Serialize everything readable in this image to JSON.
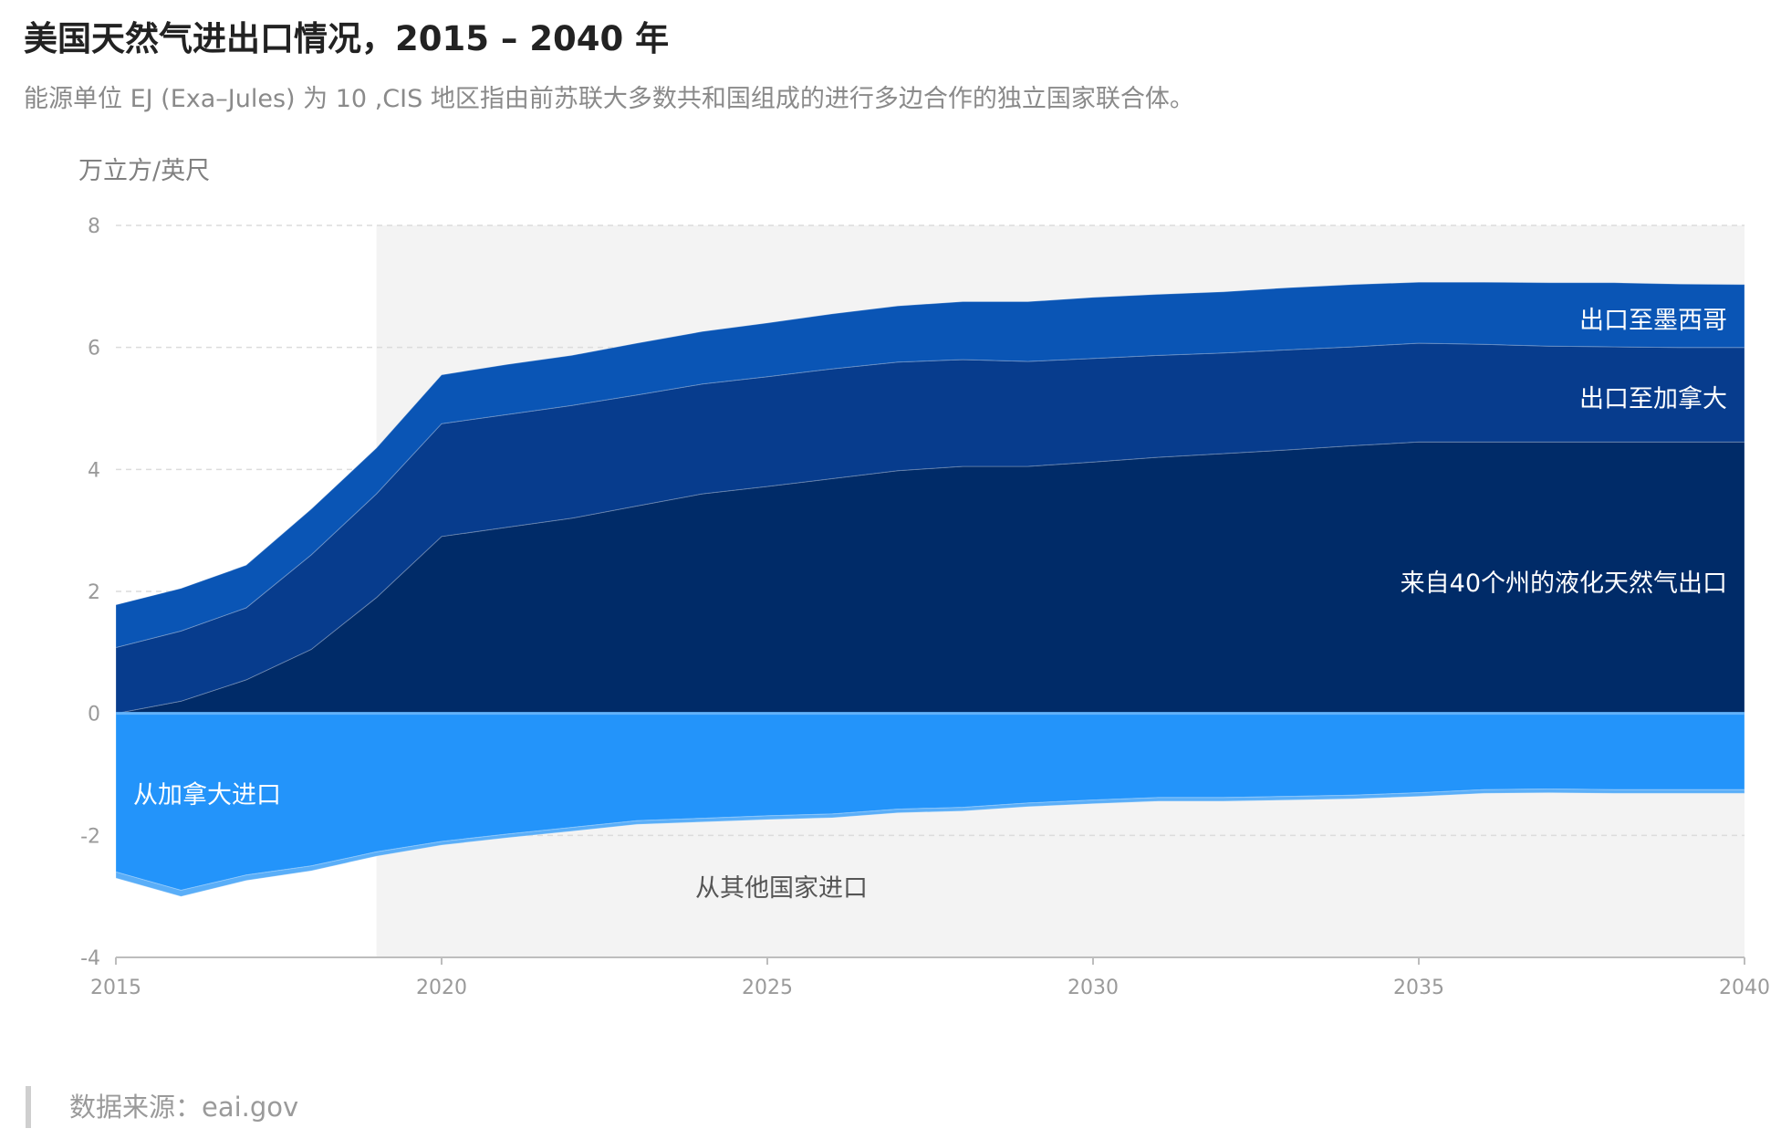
{
  "title": "美国天然气进出口情况，2015 – 2040 年",
  "subtitle": "能源单位 EJ (Exa–Jules) 为 10 ,CIS 地区指由前苏联大多数共和国组成的进行多边合作的独立国家联合体。",
  "source": "数据来源：eai.gov",
  "chart_data": {
    "type": "area",
    "ylabel": "万立方/英尺",
    "xlim": [
      2015,
      2040
    ],
    "ylim": [
      -4,
      8
    ],
    "x_ticks": [
      2015,
      2020,
      2025,
      2030,
      2035,
      2040
    ],
    "y_ticks": [
      8,
      6,
      4,
      2,
      0,
      -2,
      -4
    ],
    "grid": true,
    "shaded_region": [
      2019,
      2040
    ],
    "x": [
      2015,
      2016,
      2017,
      2018,
      2019,
      2020,
      2021,
      2022,
      2023,
      2024,
      2025,
      2026,
      2027,
      2028,
      2029,
      2030,
      2031,
      2032,
      2033,
      2034,
      2035,
      2036,
      2037,
      2038,
      2039,
      2040
    ],
    "series": [
      {
        "name": "来自40个州的液化天然气出口",
        "color": "#002b68",
        "values": [
          0.0,
          0.2,
          0.55,
          1.05,
          1.9,
          2.9,
          3.05,
          3.2,
          3.4,
          3.6,
          3.72,
          3.85,
          3.98,
          4.05,
          4.05,
          4.12,
          4.2,
          4.26,
          4.32,
          4.39,
          4.45,
          4.45,
          4.45,
          4.45,
          4.45,
          4.45
        ]
      },
      {
        "name": "出口至加拿大",
        "color": "#073c8d",
        "values": [
          1.08,
          1.15,
          1.18,
          1.55,
          1.7,
          1.85,
          1.85,
          1.85,
          1.82,
          1.8,
          1.8,
          1.8,
          1.78,
          1.75,
          1.72,
          1.7,
          1.67,
          1.65,
          1.64,
          1.62,
          1.62,
          1.6,
          1.57,
          1.56,
          1.55,
          1.55
        ]
      },
      {
        "name": "出口至墨西哥",
        "color": "#0a55b5",
        "values": [
          0.7,
          0.7,
          0.7,
          0.75,
          0.75,
          0.8,
          0.82,
          0.82,
          0.85,
          0.86,
          0.88,
          0.9,
          0.92,
          0.95,
          0.98,
          1.0,
          1.0,
          1.0,
          1.02,
          1.02,
          1.0,
          1.02,
          1.04,
          1.05,
          1.04,
          1.03
        ]
      },
      {
        "name": "从加拿大进口",
        "color": "#2394fa",
        "values": [
          -2.6,
          -2.9,
          -2.65,
          -2.5,
          -2.27,
          -2.1,
          -1.98,
          -1.87,
          -1.76,
          -1.72,
          -1.68,
          -1.65,
          -1.57,
          -1.54,
          -1.47,
          -1.42,
          -1.38,
          -1.38,
          -1.36,
          -1.34,
          -1.3,
          -1.25,
          -1.24,
          -1.25,
          -1.25,
          -1.25
        ]
      },
      {
        "name": "从其他国家进口",
        "color": "#5aaef8",
        "values": [
          -0.1,
          -0.1,
          -0.09,
          -0.08,
          -0.07,
          -0.06,
          -0.06,
          -0.06,
          -0.06,
          -0.06,
          -0.06,
          -0.06,
          -0.06,
          -0.06,
          -0.06,
          -0.06,
          -0.06,
          -0.06,
          -0.06,
          -0.06,
          -0.06,
          -0.06,
          -0.06,
          -0.06,
          -0.06,
          -0.06
        ]
      }
    ]
  }
}
